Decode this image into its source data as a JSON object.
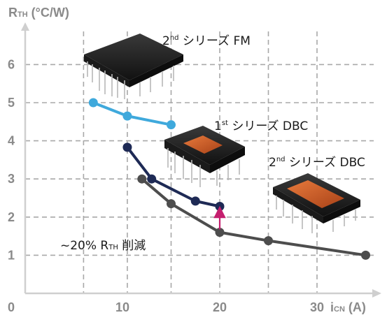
{
  "chart_data": {
    "type": "line",
    "ylabel_main": "R",
    "ylabel_sub": "TH",
    "ylabel_unit": " (°C/W)",
    "xlabel_main": "i",
    "xlabel_sub": "CN",
    "xlabel_unit": " (A)",
    "xlim": [
      0,
      35
    ],
    "ylim": [
      0,
      7
    ],
    "x_ticks": [
      {
        "v": 0,
        "label": "0"
      },
      {
        "v": 10,
        "label": "10"
      },
      {
        "v": 20,
        "label": "20"
      },
      {
        "v": 30,
        "label": "30"
      }
    ],
    "y_ticks": [
      {
        "v": 1,
        "label": "1"
      },
      {
        "v": 2,
        "label": "2"
      },
      {
        "v": 3,
        "label": "3"
      },
      {
        "v": 4,
        "label": "4"
      },
      {
        "v": 5,
        "label": "5"
      },
      {
        "v": 6,
        "label": "6"
      }
    ],
    "grid": true,
    "series": [
      {
        "key": "fm",
        "sup_num": "2",
        "sup": "nd",
        "rest": " シリーズ FM",
        "color": "#3fa9dc",
        "points": [
          [
            7,
            5.0
          ],
          [
            10.5,
            4.65
          ],
          [
            15,
            4.42
          ]
        ]
      },
      {
        "key": "dbc1",
        "sup_num": "1",
        "sup": "st",
        "rest": " シリーズ DBC",
        "color": "#1e2a55",
        "points": [
          [
            10.5,
            3.83
          ],
          [
            13,
            3.0
          ],
          [
            17.5,
            2.42
          ],
          [
            20,
            2.28
          ]
        ]
      },
      {
        "key": "dbc2",
        "sup_num": "2",
        "sup": "nd",
        "rest": " シリーズ DBC",
        "color": "#4d4d4d",
        "points": [
          [
            12,
            3.0
          ],
          [
            15,
            2.35
          ],
          [
            20,
            1.6
          ],
          [
            25,
            1.38
          ],
          [
            35,
            1.0
          ]
        ]
      }
    ],
    "annotation": {
      "pre": "~20% R",
      "sub": "TH",
      "post": " 削減",
      "arrow_x": 20,
      "arrow_from": 1.6,
      "arrow_to": 2.28,
      "arrow_color": "#c41e6e"
    }
  }
}
